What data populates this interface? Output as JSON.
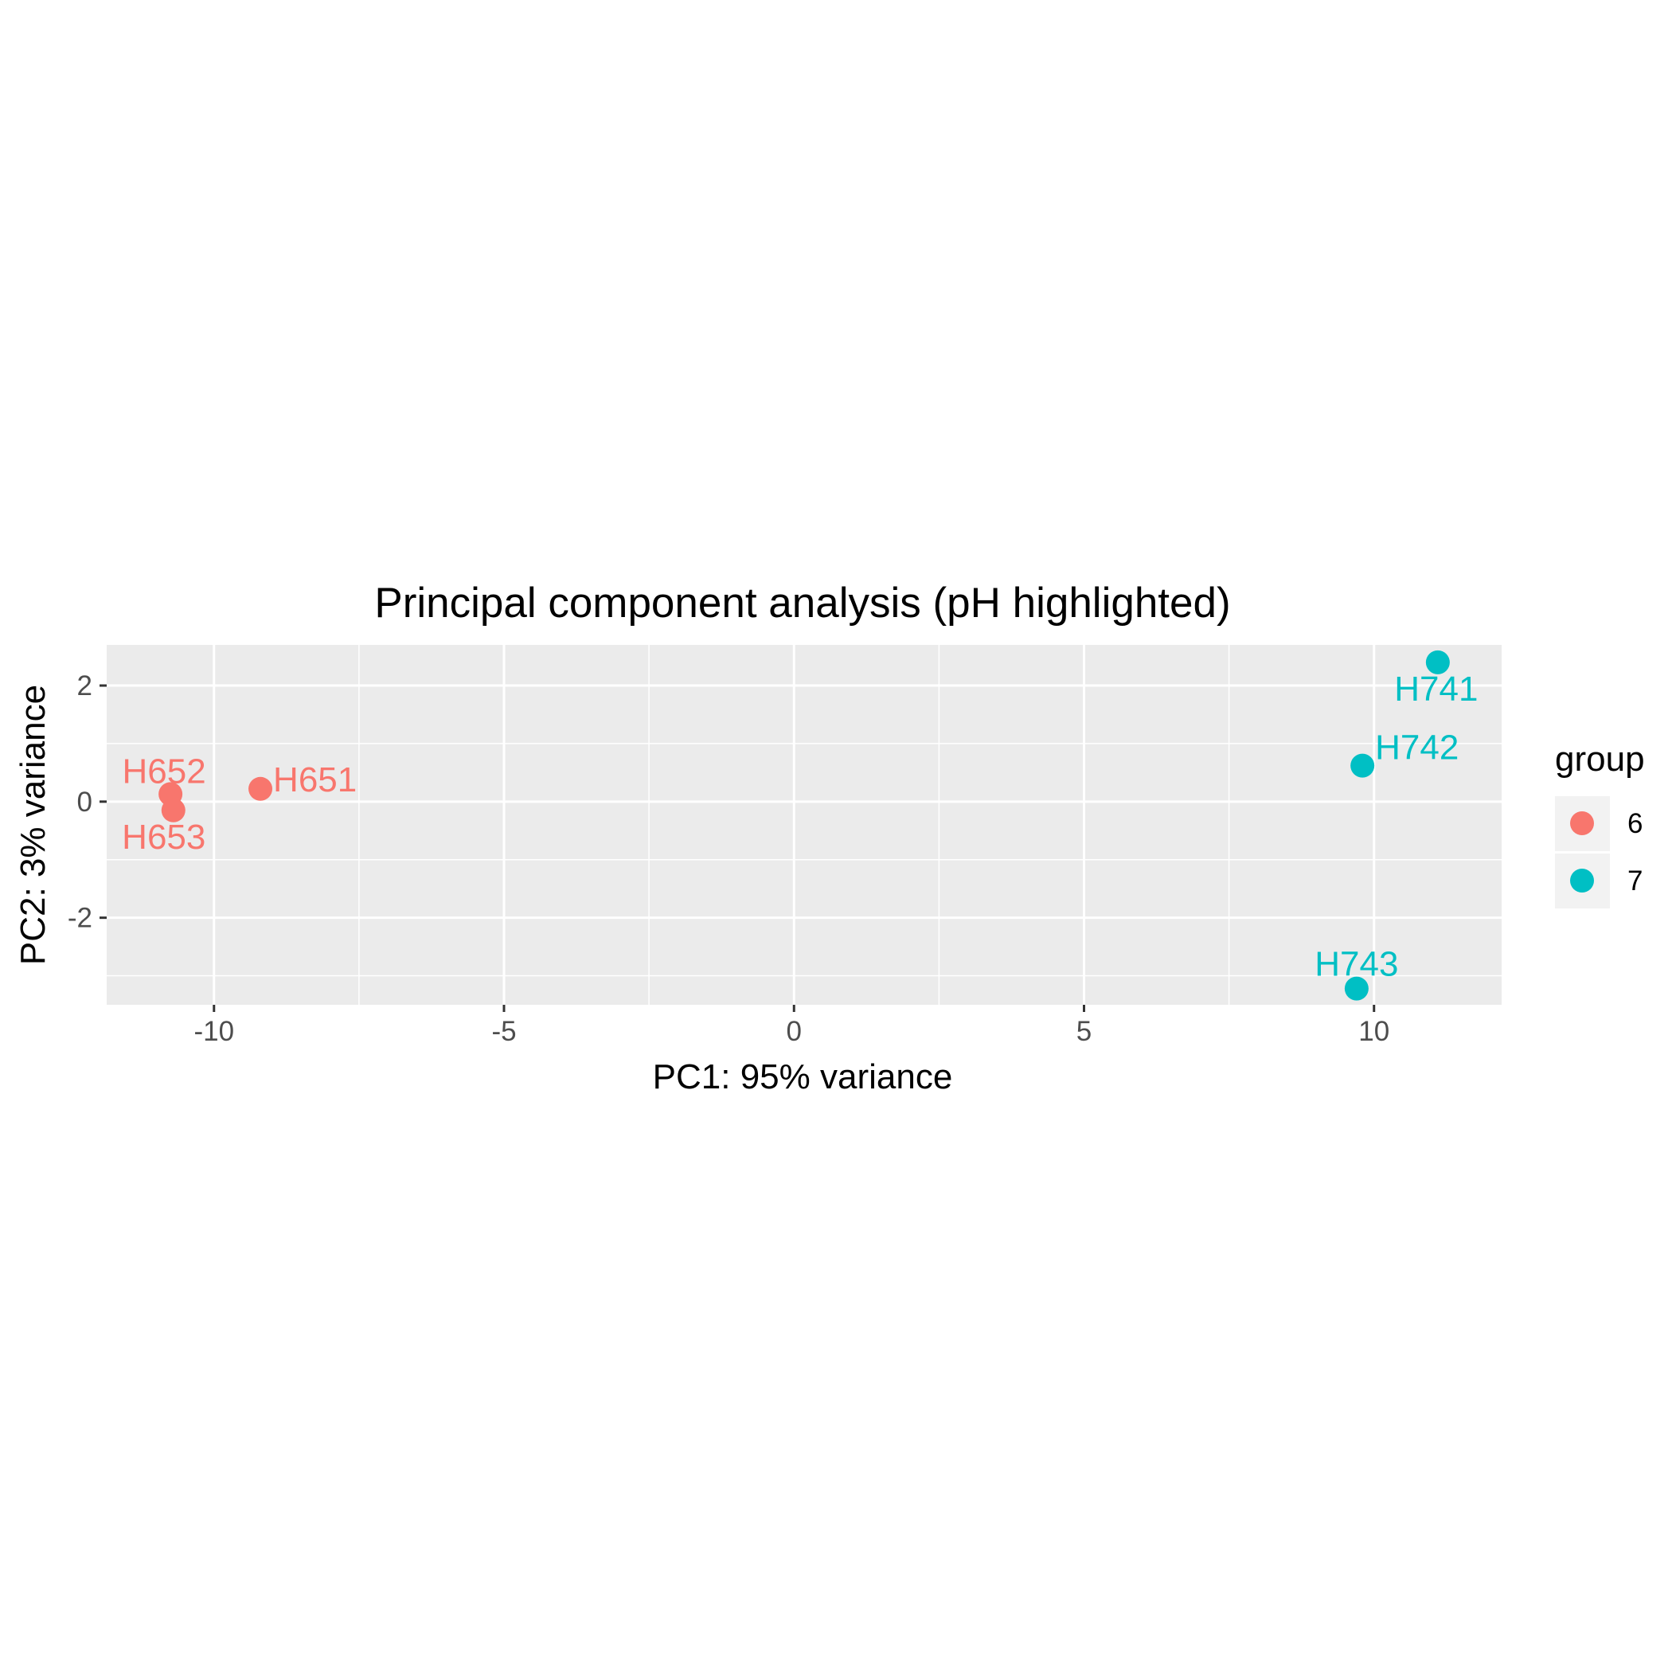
{
  "chart_data": {
    "type": "scatter",
    "title": "Principal component analysis (pH highlighted)",
    "xlabel": "PC1: 95% variance",
    "ylabel": "PC2: 3% variance",
    "xlim": [
      -11.85,
      12.2
    ],
    "ylim": [
      -3.5,
      2.7
    ],
    "x_ticks": [
      -10,
      -5,
      0,
      5,
      10
    ],
    "x_tick_labels": [
      "-10",
      "-5",
      "0",
      "5",
      "10"
    ],
    "y_ticks": [
      -2,
      0,
      2
    ],
    "y_tick_labels": [
      "-2",
      "0",
      "2"
    ],
    "grid": true,
    "legend": {
      "title": "group",
      "placement": "right",
      "entries": [
        {
          "label": "6",
          "color": "#F8766D"
        },
        {
          "label": "7",
          "color": "#00BFC4"
        }
      ]
    },
    "series": [
      {
        "group": "6",
        "color": "#F8766D",
        "points": [
          {
            "label": "H651",
            "x": -9.2,
            "y": 0.22,
            "label_pos": "right"
          },
          {
            "label": "H652",
            "x": -10.75,
            "y": 0.13,
            "label_pos": "above"
          },
          {
            "label": "H653",
            "x": -10.7,
            "y": -0.15,
            "label_pos": "below"
          }
        ]
      },
      {
        "group": "7",
        "color": "#00BFC4",
        "points": [
          {
            "label": "H741",
            "x": 11.1,
            "y": 2.4,
            "label_pos": "below"
          },
          {
            "label": "H742",
            "x": 9.8,
            "y": 0.62,
            "label_pos": "upper-right"
          },
          {
            "label": "H743",
            "x": 9.7,
            "y": -3.22,
            "label_pos": "above"
          }
        ]
      }
    ]
  }
}
